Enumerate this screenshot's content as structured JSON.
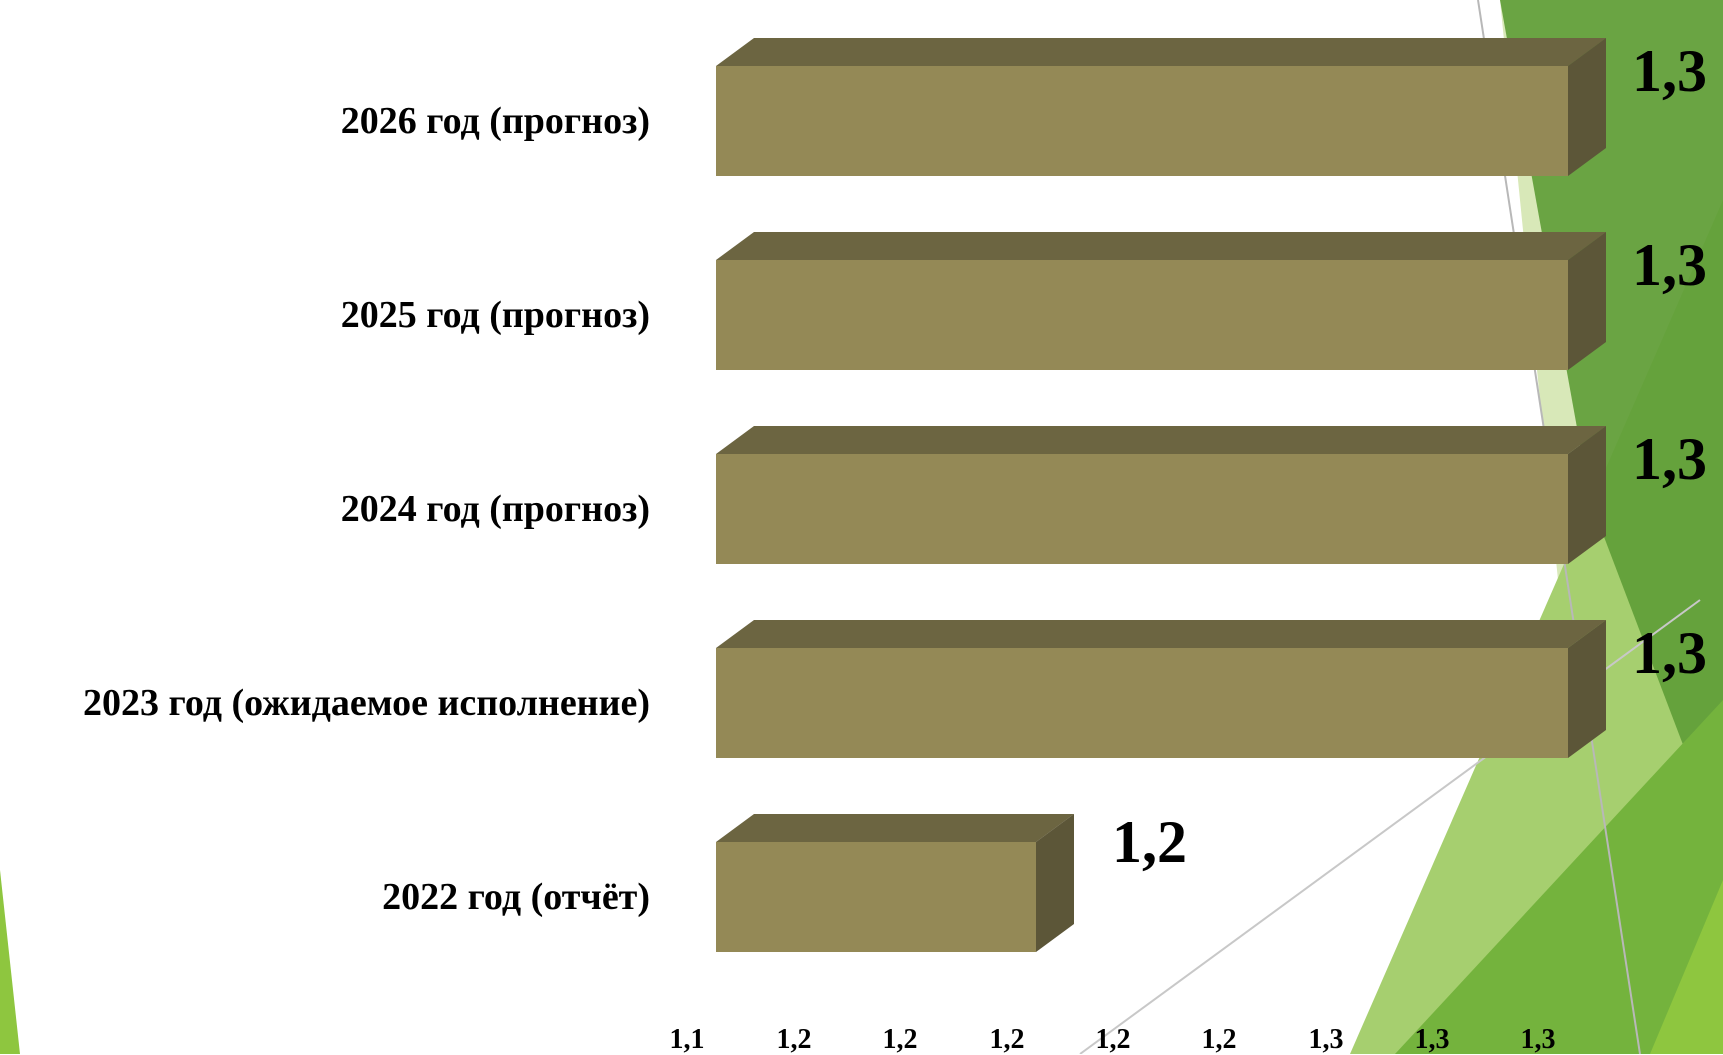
{
  "colors": {
    "bar_front": "#948956",
    "bar_top": "#6c6541",
    "bar_side": "#5c5638",
    "accent_dark_green": "#5e9c36",
    "accent_mid_green": "#74b33d",
    "accent_light_green": "#a6cf6f",
    "accent_pale_green": "#d8e8b8"
  },
  "chart_data": {
    "type": "bar",
    "orientation": "horizontal",
    "style": "3d",
    "categories": [
      "2022 год (отчёт)",
      "2023 год (ожидаемое исполнение)",
      "2024 год (прогноз)",
      "2025 год (прогноз)",
      "2026 год (прогноз)"
    ],
    "values": [
      1.2,
      1.3,
      1.3,
      1.3,
      1.3
    ],
    "value_labels": [
      "1,2",
      "1,3",
      "1,3",
      "1,3",
      "1,3"
    ],
    "xlim": [
      1.1,
      1.3
    ],
    "x_tick_labels": [
      "1,1",
      "1,2",
      "1,2",
      "1,2",
      "1,2",
      "1,2",
      "1,3",
      "1,3",
      "1,3"
    ],
    "grid": false,
    "legend": "none"
  }
}
